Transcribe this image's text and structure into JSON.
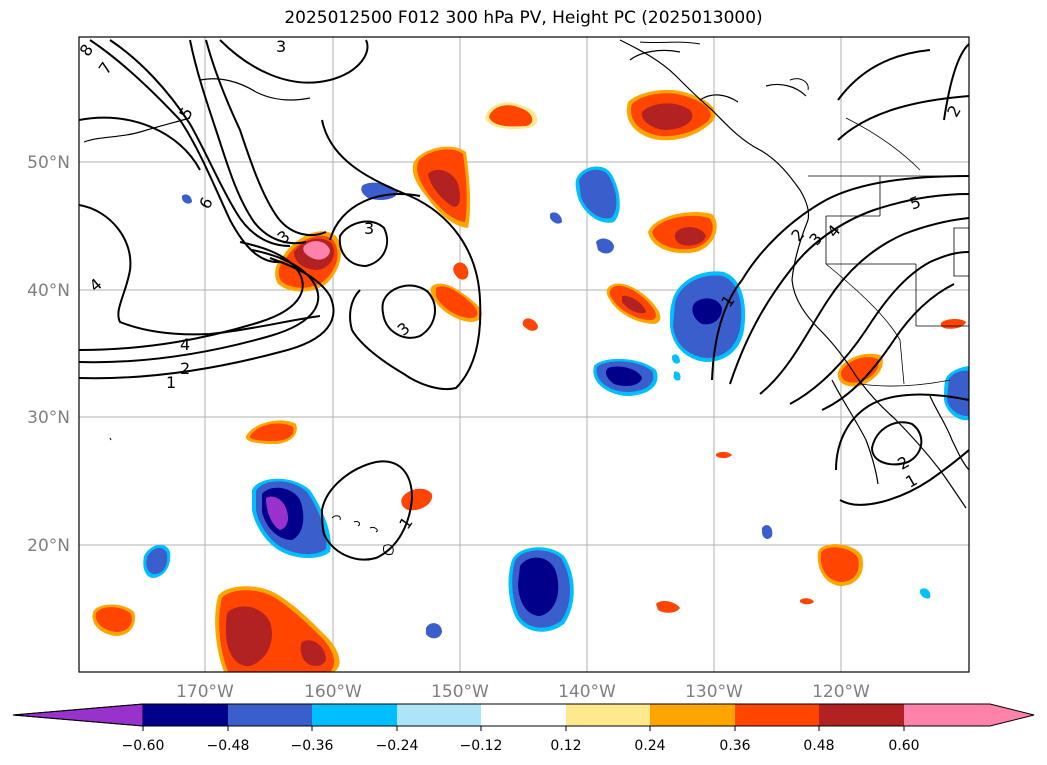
{
  "title": "2025012500 F012 300 hPa PV, Height PC (2025013000)",
  "latitude_labels": [
    "50°N",
    "40°N",
    "30°N",
    "20°N"
  ],
  "longitude_labels": [
    "170°W",
    "160°W",
    "150°W",
    "140°W",
    "130°W",
    "120°W"
  ],
  "colorbar": {
    "colors": [
      "#9932CC",
      "#00008B",
      "#3A5FCD",
      "#00BFFF",
      "#AEE4F8",
      "#FFFFFF",
      "#FFE98C",
      "#FFA500",
      "#FF4500",
      "#B22222",
      "#FF82AB"
    ],
    "tick_labels": [
      "−0.60",
      "−0.48",
      "−0.36",
      "−0.24",
      "−0.12",
      "0.12",
      "0.24",
      "0.36",
      "0.48",
      "0.60"
    ]
  },
  "contour_labels": [
    "8",
    "7",
    "3",
    "5",
    "6",
    "4",
    "3",
    "3",
    "3",
    "4",
    "2",
    "1",
    "1",
    "1",
    "2",
    "3",
    "4",
    "5",
    "2",
    "2",
    "1"
  ],
  "colors": {
    "contour": "#000000",
    "grid": "#b0b0b0",
    "coast": "#000000",
    "axis_text": "#7f7f7f"
  }
}
